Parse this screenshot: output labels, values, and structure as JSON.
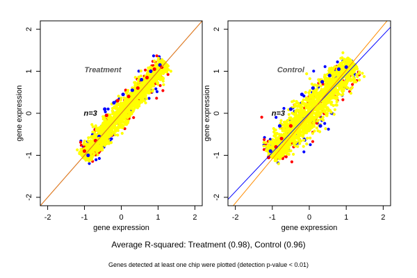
{
  "caption": {
    "main": "Average R-squared: Treatment (0.98), Control (0.96)",
    "sub": "Genes detected at least one chip were plotted (detection p-value < 0.01)"
  },
  "chart_data": [
    {
      "type": "scatter",
      "panel_label": "Treatment",
      "n_label": "n=3",
      "xlabel": "gene expression",
      "ylabel": "gene expression",
      "xlim": [
        -2.2,
        2.2
      ],
      "ylim": [
        -2.2,
        2.2
      ],
      "xticks": [
        -2,
        -1,
        0,
        1,
        2
      ],
      "yticks": [
        -2,
        -1,
        0,
        1,
        2
      ],
      "xtick_labels": [
        "-2",
        "-1",
        "0",
        "1",
        "2"
      ],
      "ytick_labels": [
        "-2",
        "-1",
        "0",
        "1",
        "2"
      ],
      "grid": false,
      "series": [
        {
          "color": "#0000ff",
          "x": [
            -0.9,
            -0.6,
            -0.45,
            -0.2,
            0.05,
            0.3,
            0.55,
            0.8,
            1.05
          ],
          "y": [
            -1.0,
            -0.55,
            0.1,
            0.25,
            0.45,
            0.55,
            0.8,
            1.0,
            1.15
          ]
        },
        {
          "color": "#ff0000",
          "x": [
            -1.0,
            -0.7,
            -0.4,
            -0.1,
            0.2,
            0.45,
            0.7,
            0.9,
            1.1
          ],
          "y": [
            -0.9,
            -0.65,
            -0.05,
            0.3,
            0.4,
            0.6,
            0.85,
            1.05,
            1.1
          ]
        },
        {
          "color": "#ffff00",
          "x": [
            -1.0,
            -0.8,
            -0.6,
            -0.4,
            -0.2,
            0.0,
            0.2,
            0.4,
            0.6,
            0.8,
            1.0,
            1.15
          ],
          "y": [
            -1.0,
            -0.8,
            -0.6,
            -0.4,
            -0.2,
            0.0,
            0.2,
            0.4,
            0.6,
            0.8,
            1.0,
            1.15
          ]
        }
      ],
      "lines": [
        {
          "color": "#0000ff",
          "x": [
            -2.2,
            2.2
          ],
          "y": [
            -2.2,
            2.2
          ]
        },
        {
          "color": "#ff8c00",
          "x": [
            -2.2,
            2.2
          ],
          "y": [
            -2.2,
            2.2
          ]
        }
      ]
    },
    {
      "type": "scatter",
      "panel_label": "Control",
      "n_label": "n=3",
      "xlabel": "gene expression",
      "ylabel": "gene expression",
      "xlim": [
        -2.2,
        2.2
      ],
      "ylim": [
        -2.2,
        2.2
      ],
      "xticks": [
        -2,
        -1,
        0,
        1,
        2
      ],
      "yticks": [
        -2,
        -1,
        0,
        1,
        2
      ],
      "xtick_labels": [
        "-2",
        "-1",
        "0",
        "1",
        "2"
      ],
      "ytick_labels": [
        "-2",
        "-1",
        "0",
        "1",
        "2"
      ],
      "grid": false,
      "series": [
        {
          "color": "#0000ff",
          "x": [
            -1.05,
            -0.8,
            -0.5,
            -0.2,
            0.1,
            0.35,
            0.55,
            0.8,
            1.0,
            0.3
          ],
          "y": [
            -0.9,
            -0.3,
            0.1,
            0.45,
            0.6,
            0.75,
            0.9,
            1.05,
            1.1,
            -0.3
          ]
        },
        {
          "color": "#ff0000",
          "x": [
            -1.1,
            -0.9,
            -0.75,
            -0.5
          ],
          "y": [
            -1.05,
            -0.8,
            -0.6,
            -0.3
          ]
        },
        {
          "color": "#ffff00",
          "x": [
            -1.0,
            -0.8,
            -0.6,
            -0.4,
            -0.2,
            0.0,
            0.2,
            0.4,
            0.6,
            0.8,
            1.0,
            1.15
          ],
          "y": [
            -1.0,
            -0.8,
            -0.6,
            -0.4,
            -0.2,
            0.0,
            0.2,
            0.4,
            0.6,
            0.8,
            1.0,
            1.15
          ]
        }
      ],
      "lines": [
        {
          "color": "#0000ff",
          "x": [
            -2.2,
            2.2
          ],
          "y": [
            -2.05,
            2.05
          ]
        },
        {
          "color": "#ff8c00",
          "x": [
            -2.2,
            2.2
          ],
          "y": [
            -2.35,
            2.3
          ]
        }
      ]
    }
  ]
}
